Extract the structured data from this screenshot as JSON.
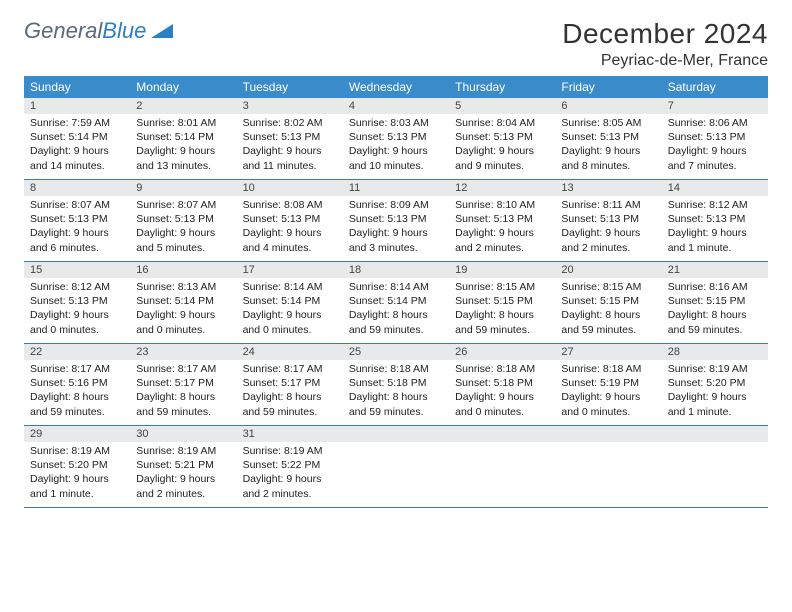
{
  "brand": {
    "part1": "General",
    "part2": "Blue"
  },
  "title": "December 2024",
  "location": "Peyriac-de-Mer, France",
  "colors": {
    "header_bg": "#3a8bc9",
    "header_text": "#ffffff",
    "daynum_bg": "#e8e9ea",
    "rule": "#3a7bb0",
    "brand_gray": "#5a6a78",
    "brand_blue": "#2d7fc4"
  },
  "weekdays": [
    "Sunday",
    "Monday",
    "Tuesday",
    "Wednesday",
    "Thursday",
    "Friday",
    "Saturday"
  ],
  "days": [
    {
      "n": 1,
      "sr": "7:59 AM",
      "ss": "5:14 PM",
      "dl": "9 hours and 14 minutes."
    },
    {
      "n": 2,
      "sr": "8:01 AM",
      "ss": "5:14 PM",
      "dl": "9 hours and 13 minutes."
    },
    {
      "n": 3,
      "sr": "8:02 AM",
      "ss": "5:13 PM",
      "dl": "9 hours and 11 minutes."
    },
    {
      "n": 4,
      "sr": "8:03 AM",
      "ss": "5:13 PM",
      "dl": "9 hours and 10 minutes."
    },
    {
      "n": 5,
      "sr": "8:04 AM",
      "ss": "5:13 PM",
      "dl": "9 hours and 9 minutes."
    },
    {
      "n": 6,
      "sr": "8:05 AM",
      "ss": "5:13 PM",
      "dl": "9 hours and 8 minutes."
    },
    {
      "n": 7,
      "sr": "8:06 AM",
      "ss": "5:13 PM",
      "dl": "9 hours and 7 minutes."
    },
    {
      "n": 8,
      "sr": "8:07 AM",
      "ss": "5:13 PM",
      "dl": "9 hours and 6 minutes."
    },
    {
      "n": 9,
      "sr": "8:07 AM",
      "ss": "5:13 PM",
      "dl": "9 hours and 5 minutes."
    },
    {
      "n": 10,
      "sr": "8:08 AM",
      "ss": "5:13 PM",
      "dl": "9 hours and 4 minutes."
    },
    {
      "n": 11,
      "sr": "8:09 AM",
      "ss": "5:13 PM",
      "dl": "9 hours and 3 minutes."
    },
    {
      "n": 12,
      "sr": "8:10 AM",
      "ss": "5:13 PM",
      "dl": "9 hours and 2 minutes."
    },
    {
      "n": 13,
      "sr": "8:11 AM",
      "ss": "5:13 PM",
      "dl": "9 hours and 2 minutes."
    },
    {
      "n": 14,
      "sr": "8:12 AM",
      "ss": "5:13 PM",
      "dl": "9 hours and 1 minute."
    },
    {
      "n": 15,
      "sr": "8:12 AM",
      "ss": "5:13 PM",
      "dl": "9 hours and 0 minutes."
    },
    {
      "n": 16,
      "sr": "8:13 AM",
      "ss": "5:14 PM",
      "dl": "9 hours and 0 minutes."
    },
    {
      "n": 17,
      "sr": "8:14 AM",
      "ss": "5:14 PM",
      "dl": "9 hours and 0 minutes."
    },
    {
      "n": 18,
      "sr": "8:14 AM",
      "ss": "5:14 PM",
      "dl": "8 hours and 59 minutes."
    },
    {
      "n": 19,
      "sr": "8:15 AM",
      "ss": "5:15 PM",
      "dl": "8 hours and 59 minutes."
    },
    {
      "n": 20,
      "sr": "8:15 AM",
      "ss": "5:15 PM",
      "dl": "8 hours and 59 minutes."
    },
    {
      "n": 21,
      "sr": "8:16 AM",
      "ss": "5:15 PM",
      "dl": "8 hours and 59 minutes."
    },
    {
      "n": 22,
      "sr": "8:17 AM",
      "ss": "5:16 PM",
      "dl": "8 hours and 59 minutes."
    },
    {
      "n": 23,
      "sr": "8:17 AM",
      "ss": "5:17 PM",
      "dl": "8 hours and 59 minutes."
    },
    {
      "n": 24,
      "sr": "8:17 AM",
      "ss": "5:17 PM",
      "dl": "8 hours and 59 minutes."
    },
    {
      "n": 25,
      "sr": "8:18 AM",
      "ss": "5:18 PM",
      "dl": "8 hours and 59 minutes."
    },
    {
      "n": 26,
      "sr": "8:18 AM",
      "ss": "5:18 PM",
      "dl": "9 hours and 0 minutes."
    },
    {
      "n": 27,
      "sr": "8:18 AM",
      "ss": "5:19 PM",
      "dl": "9 hours and 0 minutes."
    },
    {
      "n": 28,
      "sr": "8:19 AM",
      "ss": "5:20 PM",
      "dl": "9 hours and 1 minute."
    },
    {
      "n": 29,
      "sr": "8:19 AM",
      "ss": "5:20 PM",
      "dl": "9 hours and 1 minute."
    },
    {
      "n": 30,
      "sr": "8:19 AM",
      "ss": "5:21 PM",
      "dl": "9 hours and 2 minutes."
    },
    {
      "n": 31,
      "sr": "8:19 AM",
      "ss": "5:22 PM",
      "dl": "9 hours and 2 minutes."
    }
  ],
  "labels": {
    "sunrise": "Sunrise:",
    "sunset": "Sunset:",
    "daylight": "Daylight:"
  },
  "layout": {
    "start_weekday": 0,
    "trailing_empty": 4
  }
}
